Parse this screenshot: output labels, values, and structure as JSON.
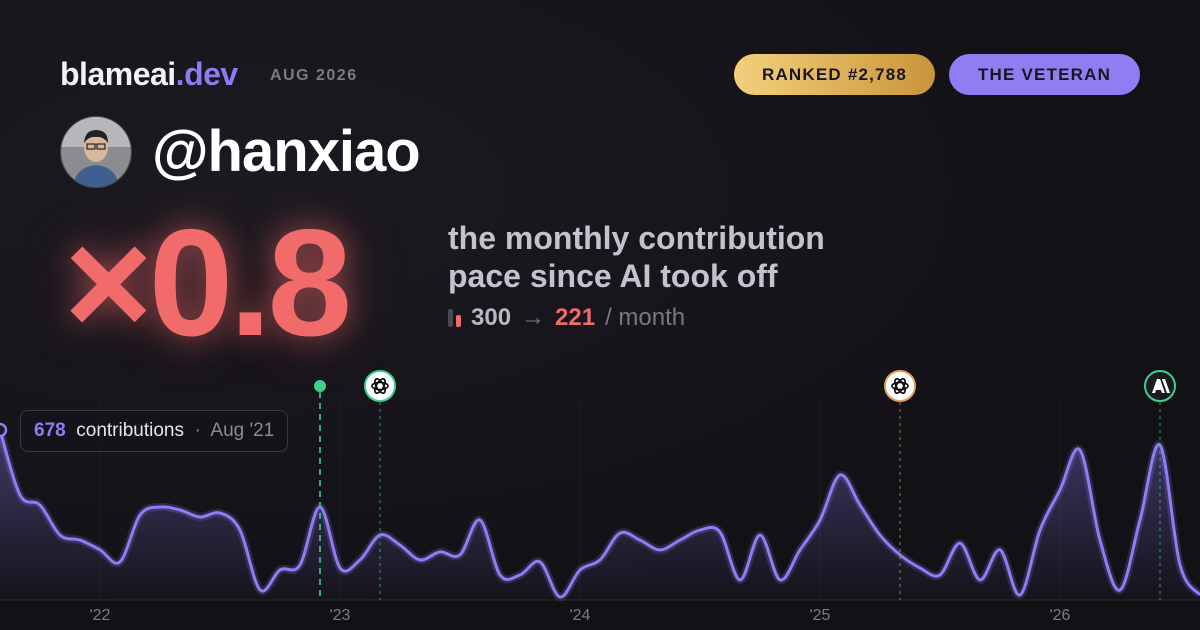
{
  "header": {
    "brand": "blameai",
    "brand_tld": ".dev",
    "date": "AUG 2026",
    "rank_badge": "RANKED #2,788",
    "persona_badge": "THE VETERAN"
  },
  "user": {
    "handle": "@hanxiao"
  },
  "headline": {
    "multiplier": "×0.8",
    "description_lines": [
      "the monthly contribution",
      "pace since AI took off"
    ],
    "before": 300,
    "arrow": "→",
    "after": 221,
    "unit": "/ month"
  },
  "chart_data": {
    "type": "area",
    "color": "#8f7df4",
    "x": [
      "2021-08",
      "2021-09",
      "2021-10",
      "2021-11",
      "2021-12",
      "2022-01",
      "2022-02",
      "2022-03",
      "2022-04",
      "2022-05",
      "2022-06",
      "2022-07",
      "2022-08",
      "2022-09",
      "2022-10",
      "2022-11",
      "2022-12",
      "2023-01",
      "2023-02",
      "2023-03",
      "2023-04",
      "2023-05",
      "2023-06",
      "2023-07",
      "2023-08",
      "2023-09",
      "2023-10",
      "2023-11",
      "2023-12",
      "2024-01",
      "2024-02",
      "2024-03",
      "2024-04",
      "2024-05",
      "2024-06",
      "2024-07",
      "2024-08",
      "2024-09",
      "2024-10",
      "2024-11",
      "2024-12",
      "2025-01",
      "2025-02",
      "2025-03",
      "2025-04",
      "2025-05",
      "2025-06",
      "2025-07",
      "2025-08",
      "2025-09",
      "2025-10",
      "2025-11",
      "2025-12",
      "2026-01",
      "2026-02",
      "2026-03",
      "2026-04",
      "2026-05",
      "2026-06",
      "2026-07",
      "2026-08"
    ],
    "values": [
      678,
      419,
      379,
      259,
      239,
      200,
      152,
      339,
      371,
      359,
      331,
      347,
      279,
      40,
      120,
      140,
      371,
      128,
      160,
      259,
      219,
      160,
      192,
      180,
      319,
      100,
      100,
      152,
      12,
      120,
      160,
      267,
      239,
      200,
      239,
      279,
      271,
      80,
      259,
      80,
      200,
      319,
      499,
      379,
      259,
      180,
      128,
      100,
      227,
      80,
      200,
      20,
      279,
      439,
      598,
      239,
      40,
      319,
      618,
      140,
      20
    ],
    "ylim": [
      0,
      750
    ],
    "xticks": [
      {
        "value": "2022-01",
        "label": "'22"
      },
      {
        "value": "2023-01",
        "label": "'23"
      },
      {
        "value": "2024-01",
        "label": "'24"
      },
      {
        "value": "2025-01",
        "label": "'25"
      },
      {
        "value": "2026-01",
        "label": "'26"
      }
    ],
    "events": [
      {
        "x": "2022-12",
        "kind": "dot"
      },
      {
        "x": "2023-03",
        "kind": "openai"
      },
      {
        "x": "2025-05",
        "kind": "openai"
      },
      {
        "x": "2026-06",
        "kind": "anthropic"
      }
    ],
    "tooltip": {
      "label": "contributions",
      "separator": "·",
      "date": "Aug '21"
    }
  }
}
